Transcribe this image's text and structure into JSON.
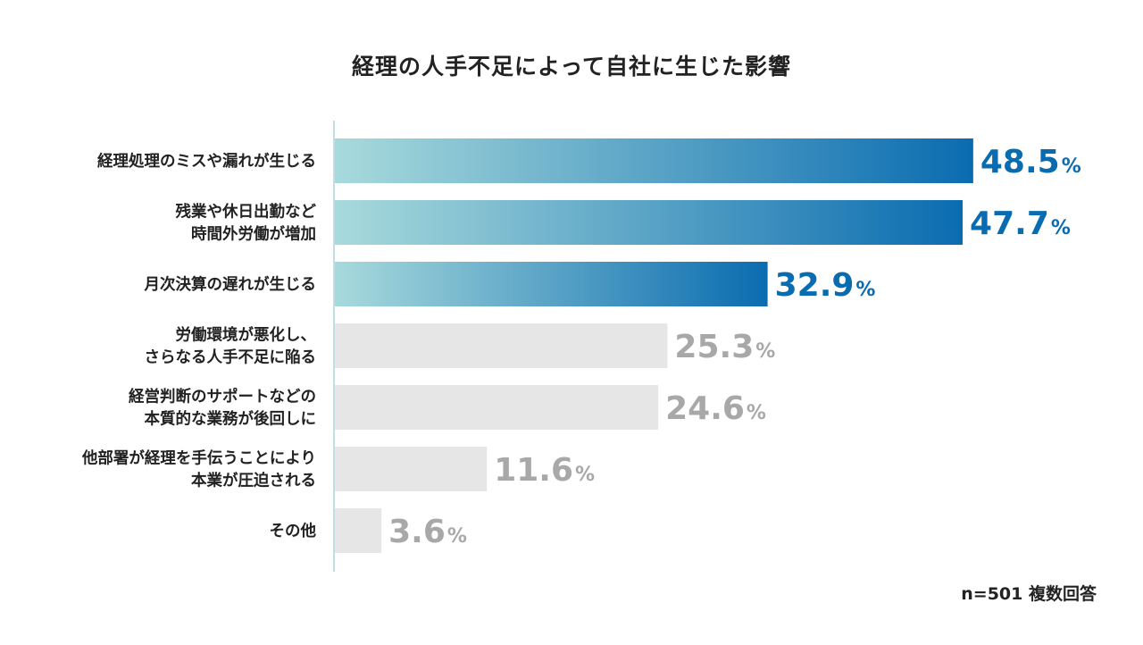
{
  "chart_data": {
    "type": "bar",
    "orientation": "horizontal",
    "title": "経理の人手不足によって自社に生じた影響",
    "categories": [
      [
        "経理処理のミスや漏れが生じる"
      ],
      [
        "残業や休日出勤など",
        "時間外労働が増加"
      ],
      [
        "月次決算の遅れが生じる"
      ],
      [
        "労働環境が悪化し、",
        "さらなる人手不足に陥る"
      ],
      [
        "経営判断のサポートなどの",
        "本質的な業務が後回しに"
      ],
      [
        "他部署が経理を手伝うことにより",
        "本業が圧迫される"
      ],
      [
        "その他"
      ]
    ],
    "values": [
      48.5,
      47.7,
      32.9,
      25.3,
      24.6,
      11.6,
      3.6
    ],
    "value_labels": [
      "48.5",
      "47.7",
      "32.9",
      "25.3",
      "24.6",
      "11.6",
      "3.6"
    ],
    "unit": "%",
    "highlighted_count": 3,
    "xlim": [
      0,
      50
    ],
    "note": "n=501 複数回答"
  },
  "colors": {
    "highlight_start": "#a8dadc",
    "highlight_end": "#0a6cb0",
    "highlight_text": "#0a6cb0",
    "muted_bar": "#e6e6e6",
    "muted_text": "#a8a8a8",
    "axis_line": "#bfe0e2"
  }
}
